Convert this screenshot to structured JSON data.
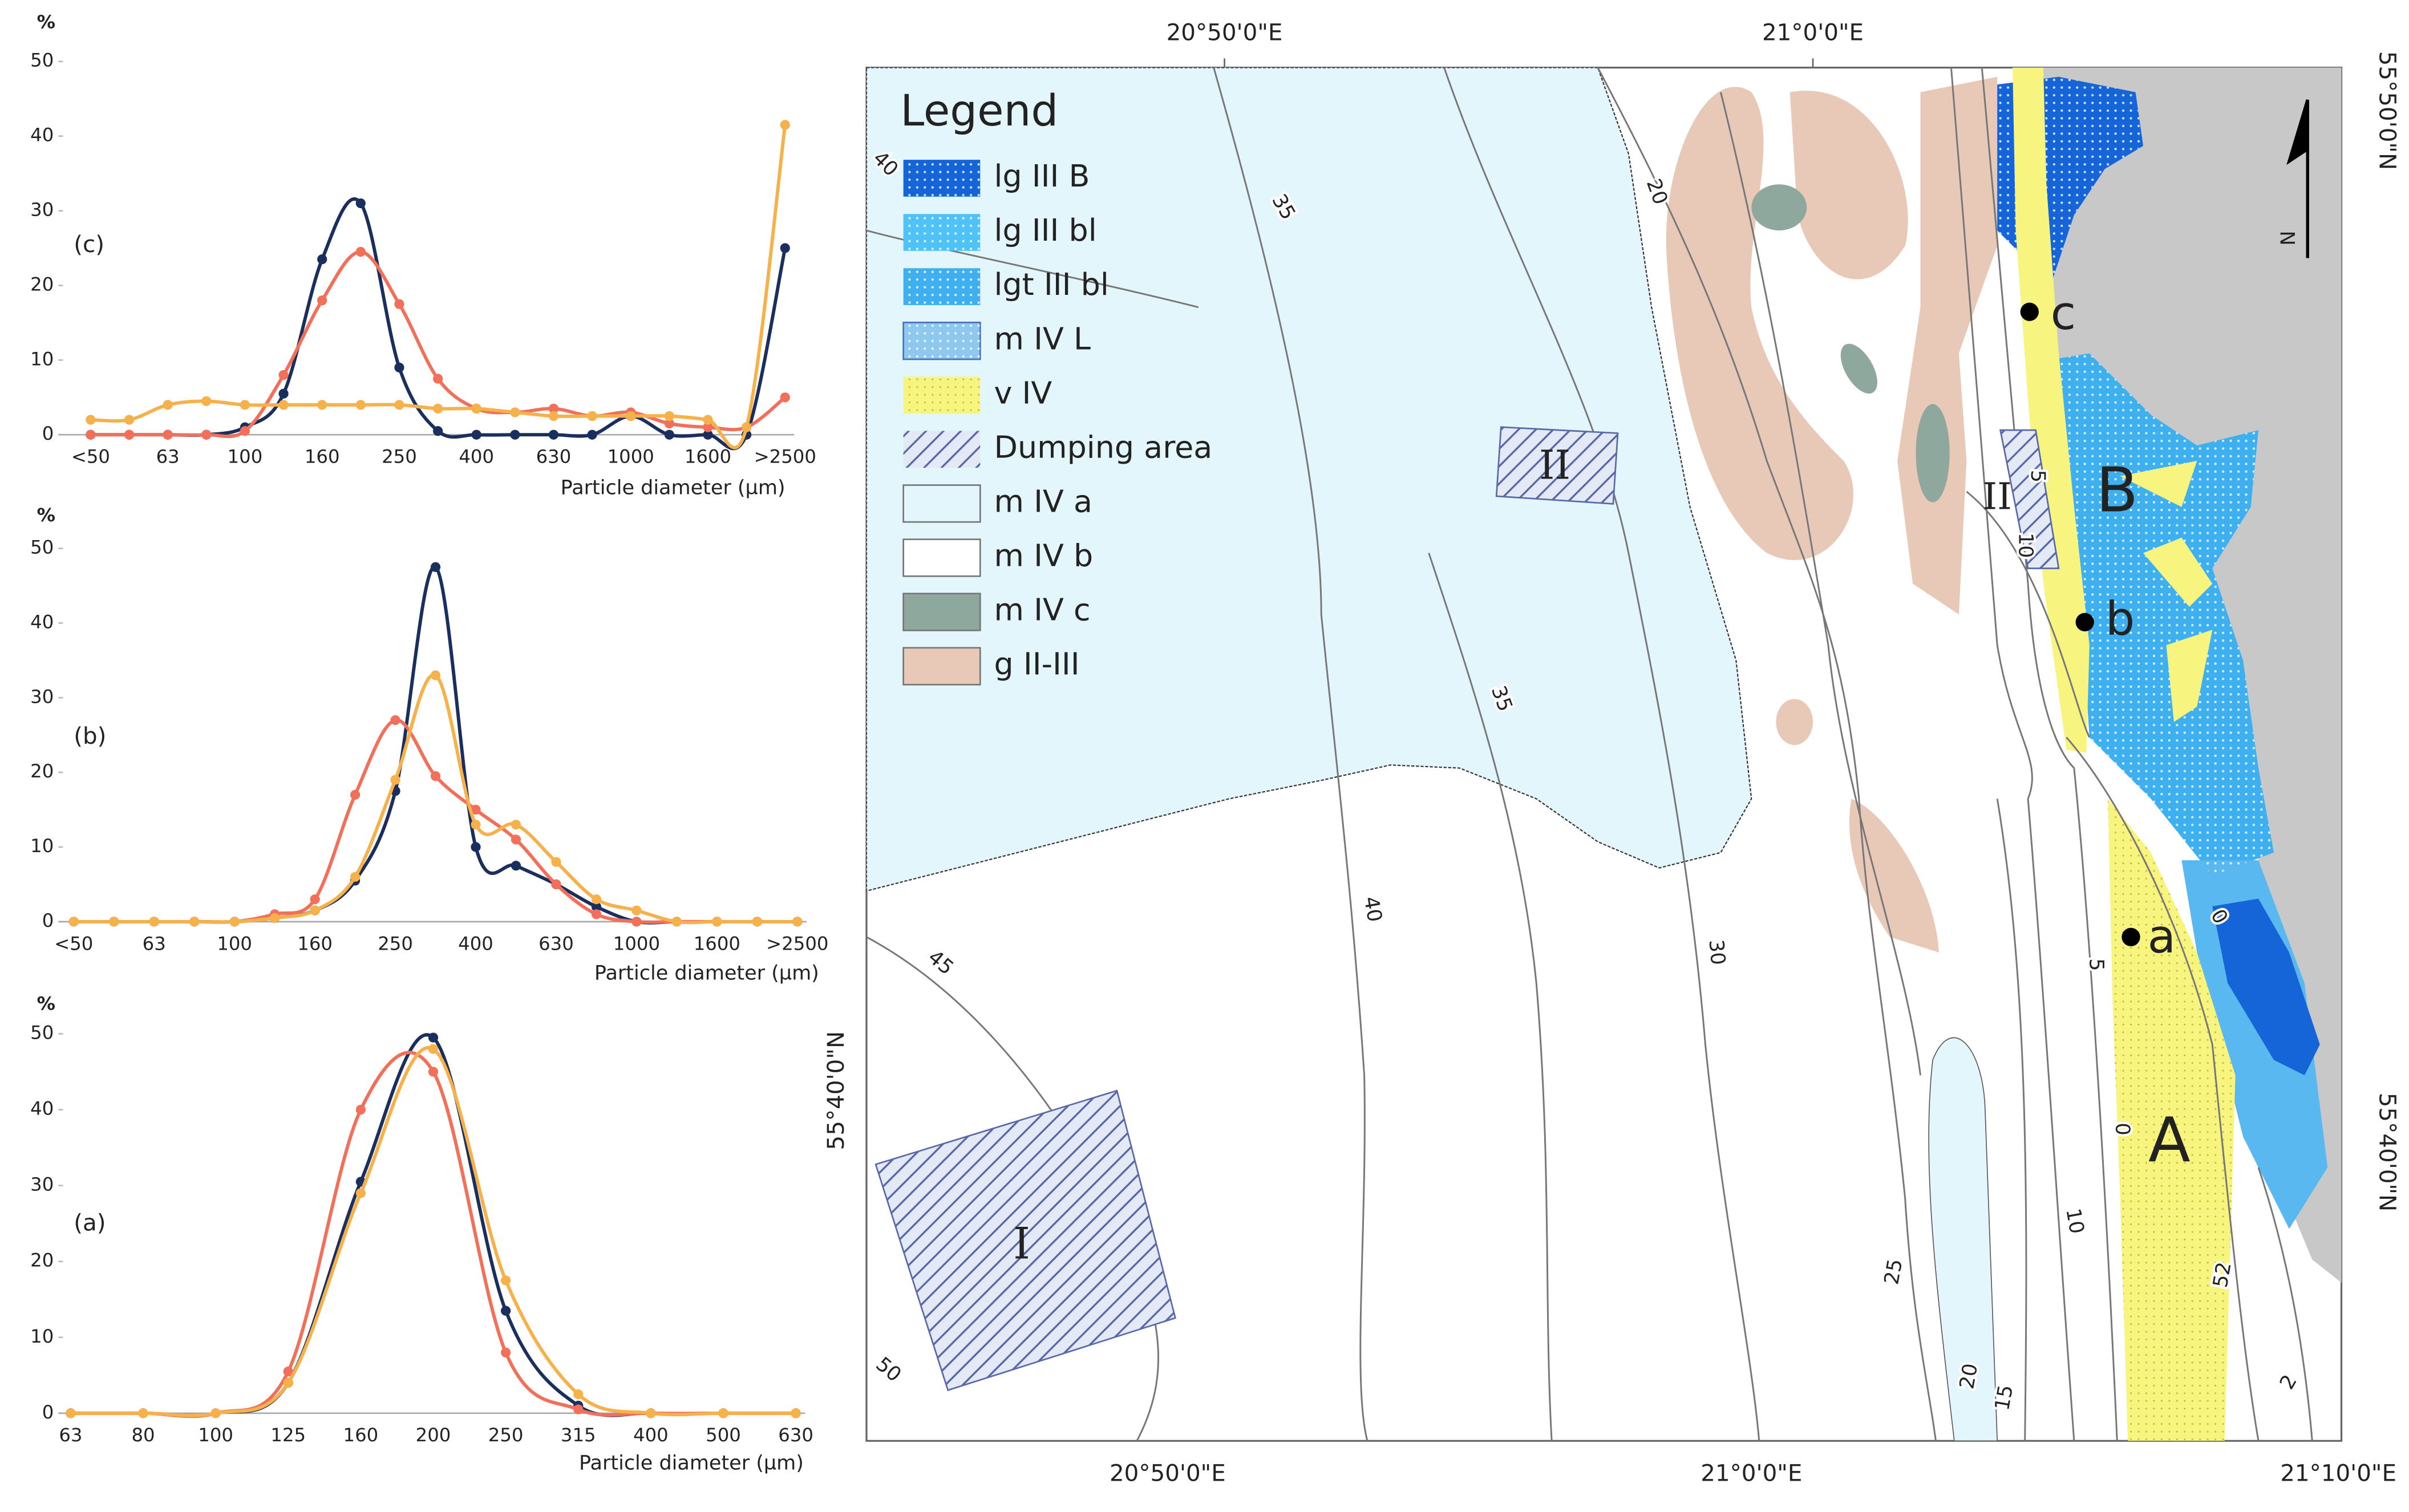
{
  "chart_data": [
    {
      "type": "line",
      "panel_label": "(c)",
      "ylabel": "%",
      "xlabel": "Particle diameter (µm)",
      "categories": [
        "<50",
        null,
        "63",
        null,
        "100",
        null,
        "160",
        null,
        "250",
        null,
        "400",
        null,
        "630",
        null,
        "1000",
        null,
        "1600",
        null,
        ">2500"
      ],
      "ylim": [
        0,
        50
      ],
      "yticks": [
        0,
        10,
        20,
        30,
        40,
        50
      ],
      "series": [
        {
          "color": "#1b2f5e",
          "values": [
            0,
            0,
            0,
            0,
            1,
            5.5,
            23.5,
            31,
            9,
            0.5,
            0,
            0,
            0,
            0,
            2.5,
            0,
            0,
            0,
            25
          ]
        },
        {
          "color": "#f2705a",
          "values": [
            0,
            0,
            0,
            0,
            0.5,
            8,
            18,
            24.5,
            17.5,
            7.5,
            3.5,
            3,
            3.5,
            2.5,
            3,
            1.5,
            1,
            1,
            5
          ]
        },
        {
          "color": "#f6b14a",
          "values": [
            2,
            2,
            4,
            4.5,
            4,
            4,
            4,
            4,
            4,
            3.5,
            3.5,
            3,
            2.5,
            2.5,
            2.5,
            2.5,
            2,
            1,
            41.5
          ]
        }
      ]
    },
    {
      "type": "line",
      "panel_label": "(b)",
      "ylabel": "%",
      "xlabel": "Particle diameter (µm)",
      "categories": [
        "<50",
        null,
        "63",
        null,
        "100",
        null,
        "160",
        null,
        "250",
        null,
        "400",
        null,
        "630",
        null,
        "1000",
        null,
        "1600",
        null,
        ">2500"
      ],
      "ylim": [
        0,
        50
      ],
      "yticks": [
        0,
        10,
        20,
        30,
        40,
        50
      ],
      "series": [
        {
          "color": "#1b2f5e",
          "values": [
            0,
            0,
            0,
            0,
            0,
            0.5,
            1.5,
            5.5,
            17.5,
            47.5,
            10,
            7.5,
            5,
            2,
            0,
            0,
            0,
            0,
            0
          ]
        },
        {
          "color": "#f2705a",
          "values": [
            0,
            0,
            0,
            0,
            0,
            1,
            3,
            17,
            27,
            19.5,
            15,
            11,
            5,
            1,
            0,
            0,
            0,
            0,
            0
          ]
        },
        {
          "color": "#f6b14a",
          "values": [
            0,
            0,
            0,
            0,
            0,
            0.5,
            1.5,
            6,
            19,
            33,
            13,
            13,
            8,
            3,
            1.5,
            0,
            0,
            0,
            0
          ]
        }
      ]
    },
    {
      "type": "line",
      "panel_label": "(a)",
      "ylabel": "%",
      "xlabel": "Particle diameter (µm)",
      "categories": [
        "63",
        "80",
        "100",
        "125",
        "160",
        "200",
        "250",
        "315",
        "400",
        "500",
        "630"
      ],
      "ylim": [
        0,
        50
      ],
      "yticks": [
        0,
        10,
        20,
        30,
        40,
        50
      ],
      "series": [
        {
          "color": "#1b2f5e",
          "values": [
            0,
            0,
            0,
            4,
            30.5,
            49.5,
            13.5,
            1,
            0,
            0,
            0
          ]
        },
        {
          "color": "#f2705a",
          "values": [
            0,
            0,
            0,
            5.5,
            40,
            45,
            8,
            0.5,
            0,
            0,
            0
          ]
        },
        {
          "color": "#f6b14a",
          "values": [
            0,
            0,
            0,
            4,
            29,
            48,
            17.5,
            2.5,
            0,
            0,
            0
          ]
        }
      ]
    }
  ],
  "map": {
    "legend_title": "Legend",
    "legend": [
      "lg III B",
      "lg III bl",
      "lgt III bl",
      "m IV L",
      "v IV",
      "Dumping area",
      "m IV a",
      "m IV b",
      "m IV c",
      "g II-III"
    ],
    "top_coords": [
      "20°50'0\"E",
      "21°0'0\"E"
    ],
    "bottom_coords": [
      "20°50'0\"E",
      "21°0'0\"E",
      "21°10'0\"E"
    ],
    "left_coords": [
      "55°40'0\"N"
    ],
    "right_coords": [
      "55°50'0\"N",
      "55°40'0\"N"
    ],
    "contours": [
      "40",
      "35",
      "20",
      "35",
      "40",
      "45",
      "30",
      "25",
      "20",
      "15",
      "10",
      "5",
      "0",
      "5",
      "10",
      "0",
      "52",
      "2",
      "50"
    ],
    "zones": [
      "A",
      "B"
    ],
    "sites": [
      "a",
      "b",
      "c"
    ],
    "dumping_areas": [
      "I",
      "II",
      "II"
    ],
    "north": "N"
  }
}
